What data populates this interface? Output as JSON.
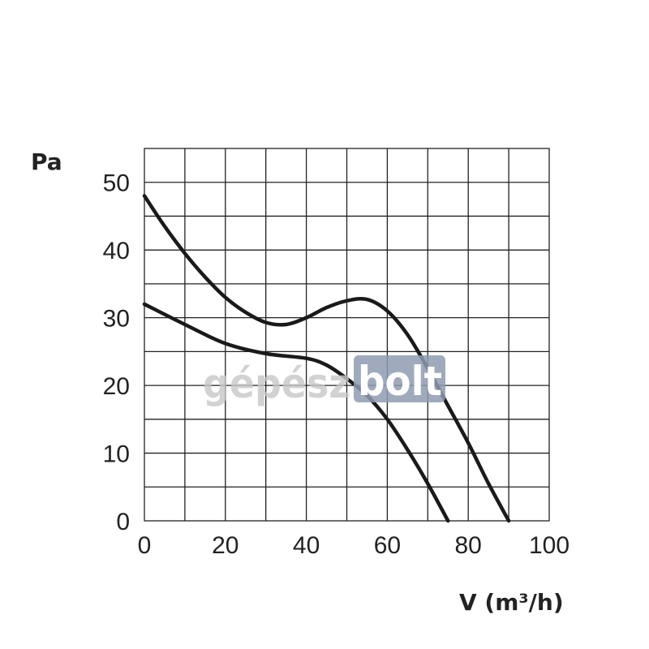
{
  "chart_data": {
    "type": "line",
    "title": "",
    "xlabel": "V (m³/h)",
    "ylabel": "Pa",
    "xlim": [
      0,
      100
    ],
    "ylim": [
      0,
      55
    ],
    "x_ticks": [
      "0",
      "20",
      "40",
      "60",
      "80",
      "100"
    ],
    "y_ticks": [
      "0",
      "10",
      "20",
      "30",
      "40",
      "50"
    ],
    "grid": true,
    "series": [
      {
        "x": [
          0,
          5,
          10,
          15,
          20,
          25,
          30,
          35,
          40,
          45,
          50,
          55,
          60,
          65,
          70,
          75,
          80,
          85,
          90
        ],
        "values": [
          48,
          43.5,
          39.5,
          36,
          33,
          30.8,
          29.3,
          29,
          30,
          31.5,
          32.5,
          32.7,
          31,
          27.5,
          22.5,
          17,
          11.5,
          5.5,
          0
        ]
      },
      {
        "x": [
          0,
          10,
          20,
          30,
          40,
          45,
          50,
          55,
          60,
          65,
          70,
          75
        ],
        "values": [
          32,
          29,
          26.2,
          24.7,
          24,
          23,
          21,
          18.5,
          15,
          10.5,
          5.5,
          0
        ]
      }
    ]
  },
  "watermark": {
    "part1": "gépész",
    "part2": "bolt",
    "color_box": "#8e9bb0"
  }
}
